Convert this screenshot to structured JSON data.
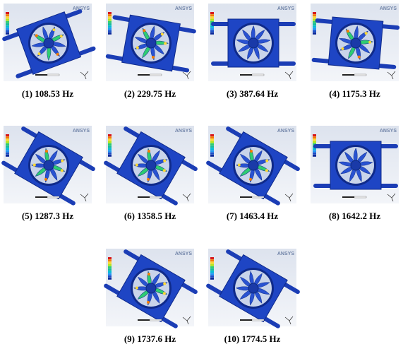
{
  "watermark": "ANSYS",
  "panels": [
    {
      "caption": "(1) 108.53 Hz"
    },
    {
      "caption": "(2) 229.75 Hz"
    },
    {
      "caption": "(3) 387.64 Hz"
    },
    {
      "caption": "(4) 1175.3 Hz"
    },
    {
      "caption": "(5) 1287.3 Hz"
    },
    {
      "caption": "(6) 1358.5 Hz"
    },
    {
      "caption": "(7) 1463.4 Hz"
    },
    {
      "caption": "(8) 1642.2 Hz"
    },
    {
      "caption": "(9) 1737.6 Hz"
    },
    {
      "caption": "(10) 1774.5 Hz"
    }
  ]
}
